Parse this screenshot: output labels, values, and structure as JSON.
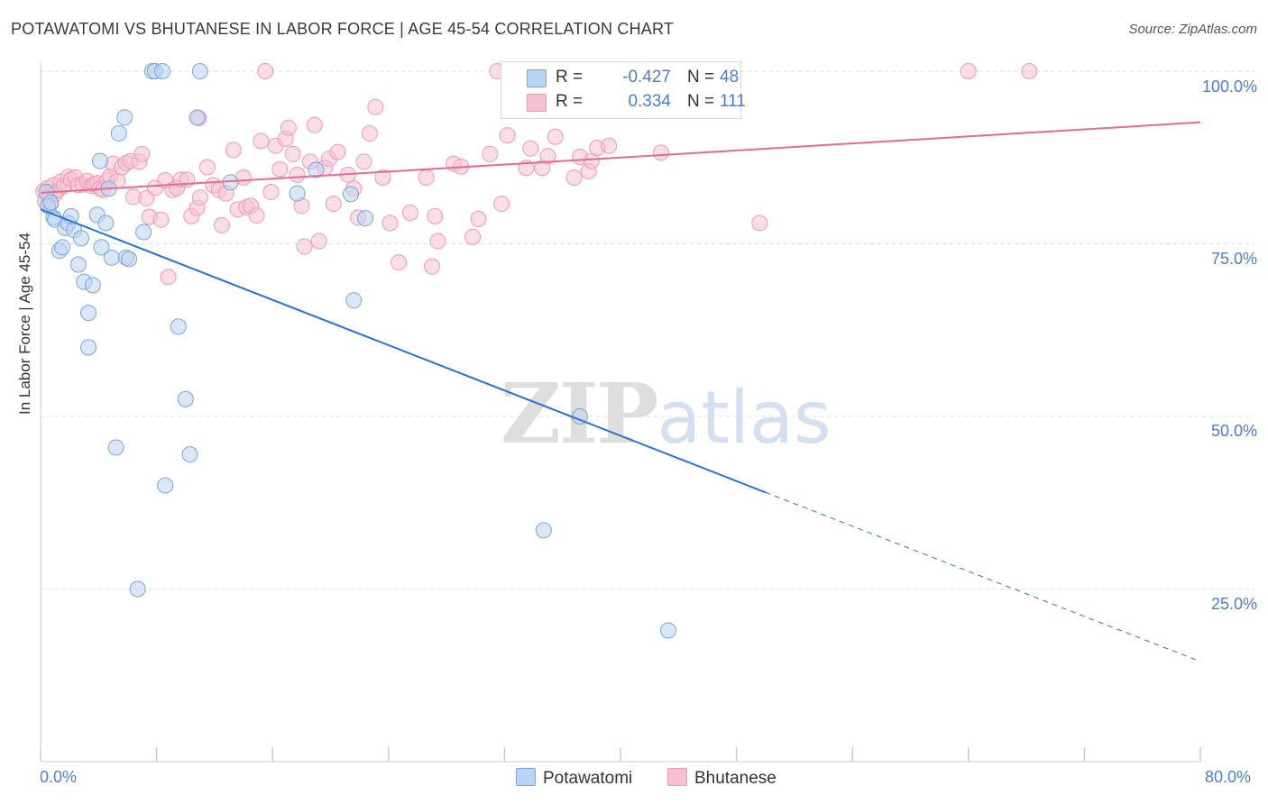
{
  "title": "POTAWATOMI VS BHUTANESE IN LABOR FORCE | AGE 45-54 CORRELATION CHART",
  "source": "Source: ZipAtlas.com",
  "watermark": {
    "zip": "ZIP",
    "atlas": "atlas"
  },
  "legend": {
    "blue": {
      "r_label": "R =",
      "r_value": "-0.427",
      "n_label": "N =",
      "n_value": "48"
    },
    "pink": {
      "r_label": "R =",
      "r_value": "0.334",
      "n_label": "N =",
      "n_value": "111"
    }
  },
  "bottom_legend": {
    "blue": "Potawatomi",
    "pink": "Bhutanese"
  },
  "colors": {
    "blue_fill": "#b9d3f2",
    "blue_stroke": "#7aa6dc",
    "blue_line": "#2f74d0",
    "pink_fill": "#f7c1d1",
    "pink_stroke": "#ee9ab4",
    "pink_line": "#e66a92",
    "grid": "#dddddd",
    "axis_text": "#4a7fd0"
  },
  "chart_data": {
    "type": "scatter",
    "title": "POTAWATOMI VS BHUTANESE IN LABOR FORCE | AGE 45-54 CORRELATION CHART",
    "xlabel": "",
    "ylabel": "In Labor Force | Age 45-54",
    "xlim": [
      0,
      80
    ],
    "ylim": [
      0,
      103
    ],
    "x_tick_labels": [
      "0.0%",
      "80.0%"
    ],
    "y_ticks": [
      25,
      50,
      75,
      100
    ],
    "y_tick_labels": [
      "25.0%",
      "50.0%",
      "75.0%",
      "100.0%"
    ],
    "legend_position": "top-center",
    "series": [
      {
        "name": "Potawatomi",
        "color": "#7aa6dc",
        "r": -0.427,
        "n": 48,
        "trend": {
          "x0": 0,
          "y0": 80.0,
          "x1": 50,
          "y1": 39.0,
          "dash_to_x": 80,
          "dash_to_y": 14.5
        },
        "points": [
          [
            0.4,
            82.5
          ],
          [
            0.5,
            80.5
          ],
          [
            0.9,
            78.8
          ],
          [
            1.0,
            78.5
          ],
          [
            1.3,
            74.0
          ],
          [
            1.5,
            74.5
          ],
          [
            1.7,
            77.3
          ],
          [
            1.9,
            78.0
          ],
          [
            2.1,
            79.0
          ],
          [
            2.3,
            77.0
          ],
          [
            2.6,
            72.0
          ],
          [
            2.8,
            75.8
          ],
          [
            3.0,
            69.5
          ],
          [
            3.3,
            65.0
          ],
          [
            3.3,
            60.0
          ],
          [
            3.6,
            69.0
          ],
          [
            3.9,
            79.2
          ],
          [
            4.1,
            87.0
          ],
          [
            4.2,
            74.5
          ],
          [
            4.5,
            78.0
          ],
          [
            4.7,
            83.0
          ],
          [
            4.9,
            73.0
          ],
          [
            5.2,
            45.5
          ],
          [
            5.4,
            91.0
          ],
          [
            5.9,
            73.0
          ],
          [
            5.8,
            93.3
          ],
          [
            6.1,
            72.8
          ],
          [
            6.7,
            25.0
          ],
          [
            7.1,
            76.7
          ],
          [
            7.7,
            100.0
          ],
          [
            7.9,
            100.0
          ],
          [
            8.4,
            100.0
          ],
          [
            8.6,
            40.0
          ],
          [
            9.5,
            63.0
          ],
          [
            10.0,
            52.5
          ],
          [
            10.3,
            44.5
          ],
          [
            10.8,
            93.3
          ],
          [
            11.0,
            100.0
          ],
          [
            13.1,
            83.9
          ],
          [
            17.7,
            82.3
          ],
          [
            19.0,
            85.7
          ],
          [
            21.4,
            82.2
          ],
          [
            21.6,
            66.8
          ],
          [
            22.4,
            78.7
          ],
          [
            37.2,
            50.0
          ],
          [
            34.7,
            33.5
          ],
          [
            43.3,
            19.0
          ],
          [
            0.7,
            81.0
          ]
        ]
      },
      {
        "name": "Bhutanese",
        "color": "#ee9ab4",
        "r": 0.334,
        "n": 111,
        "trend": {
          "x0": 0,
          "y0": 82.4,
          "x1": 80,
          "y1": 92.6
        },
        "points": [
          [
            0.2,
            82.6
          ],
          [
            0.3,
            81.2
          ],
          [
            0.5,
            83.1
          ],
          [
            0.6,
            82.0
          ],
          [
            0.7,
            80.8
          ],
          [
            0.9,
            83.5
          ],
          [
            1.0,
            82.2
          ],
          [
            1.2,
            82.8
          ],
          [
            1.4,
            84.0
          ],
          [
            1.6,
            83.4
          ],
          [
            1.9,
            84.7
          ],
          [
            2.1,
            84.3
          ],
          [
            2.4,
            84.6
          ],
          [
            2.6,
            83.5
          ],
          [
            2.9,
            83.6
          ],
          [
            3.2,
            84.1
          ],
          [
            3.5,
            83.4
          ],
          [
            3.7,
            83.6
          ],
          [
            3.9,
            83.8
          ],
          [
            4.1,
            83.0
          ],
          [
            4.3,
            82.8
          ],
          [
            4.6,
            84.2
          ],
          [
            4.8,
            84.8
          ],
          [
            5.0,
            86.6
          ],
          [
            5.3,
            84.1
          ],
          [
            5.6,
            86.1
          ],
          [
            5.9,
            86.7
          ],
          [
            6.2,
            87.0
          ],
          [
            6.4,
            81.8
          ],
          [
            6.8,
            86.9
          ],
          [
            7.0,
            88.0
          ],
          [
            7.3,
            81.6
          ],
          [
            7.5,
            78.9
          ],
          [
            7.9,
            83.1
          ],
          [
            8.3,
            78.5
          ],
          [
            8.6,
            84.2
          ],
          [
            8.8,
            70.2
          ],
          [
            9.1,
            82.8
          ],
          [
            9.4,
            83.1
          ],
          [
            9.7,
            84.3
          ],
          [
            10.1,
            84.3
          ],
          [
            10.4,
            79.0
          ],
          [
            10.8,
            80.2
          ],
          [
            10.9,
            93.2
          ],
          [
            11.0,
            81.7
          ],
          [
            11.5,
            86.1
          ],
          [
            11.9,
            83.5
          ],
          [
            12.3,
            82.8
          ],
          [
            12.5,
            77.7
          ],
          [
            12.8,
            82.3
          ],
          [
            13.3,
            88.6
          ],
          [
            13.6,
            80.0
          ],
          [
            14.0,
            84.6
          ],
          [
            14.2,
            80.3
          ],
          [
            14.5,
            80.5
          ],
          [
            14.9,
            79.1
          ],
          [
            15.2,
            89.9
          ],
          [
            15.5,
            100.0
          ],
          [
            15.9,
            82.5
          ],
          [
            16.2,
            89.2
          ],
          [
            16.5,
            85.8
          ],
          [
            16.9,
            90.2
          ],
          [
            17.1,
            91.8
          ],
          [
            17.4,
            88.0
          ],
          [
            17.7,
            85.0
          ],
          [
            18.0,
            80.5
          ],
          [
            18.2,
            74.6
          ],
          [
            18.6,
            86.9
          ],
          [
            18.9,
            92.2
          ],
          [
            19.2,
            75.4
          ],
          [
            19.6,
            86.0
          ],
          [
            19.9,
            87.3
          ],
          [
            20.2,
            80.8
          ],
          [
            20.5,
            88.3
          ],
          [
            21.2,
            85.0
          ],
          [
            21.6,
            83.0
          ],
          [
            21.9,
            78.8
          ],
          [
            22.3,
            86.9
          ],
          [
            22.7,
            91.0
          ],
          [
            23.1,
            94.8
          ],
          [
            23.6,
            84.6
          ],
          [
            24.1,
            78.0
          ],
          [
            24.7,
            72.3
          ],
          [
            25.5,
            79.5
          ],
          [
            26.6,
            84.6
          ],
          [
            27.0,
            71.7
          ],
          [
            27.2,
            79.0
          ],
          [
            27.4,
            75.4
          ],
          [
            28.5,
            86.6
          ],
          [
            29.0,
            86.2
          ],
          [
            29.8,
            76.0
          ],
          [
            30.2,
            78.6
          ],
          [
            31.0,
            88.0
          ],
          [
            31.5,
            100.0
          ],
          [
            31.8,
            80.8
          ],
          [
            32.2,
            90.7
          ],
          [
            33.5,
            86.0
          ],
          [
            33.8,
            88.8
          ],
          [
            34.6,
            86.0
          ],
          [
            35.0,
            87.7
          ],
          [
            35.5,
            90.5
          ],
          [
            36.8,
            84.6
          ],
          [
            37.2,
            87.6
          ],
          [
            37.8,
            85.5
          ],
          [
            38.0,
            87.0
          ],
          [
            38.4,
            88.9
          ],
          [
            39.2,
            89.2
          ],
          [
            42.8,
            88.2
          ],
          [
            49.6,
            78.0
          ],
          [
            64.0,
            100.0
          ],
          [
            68.2,
            100.0
          ]
        ]
      }
    ]
  }
}
